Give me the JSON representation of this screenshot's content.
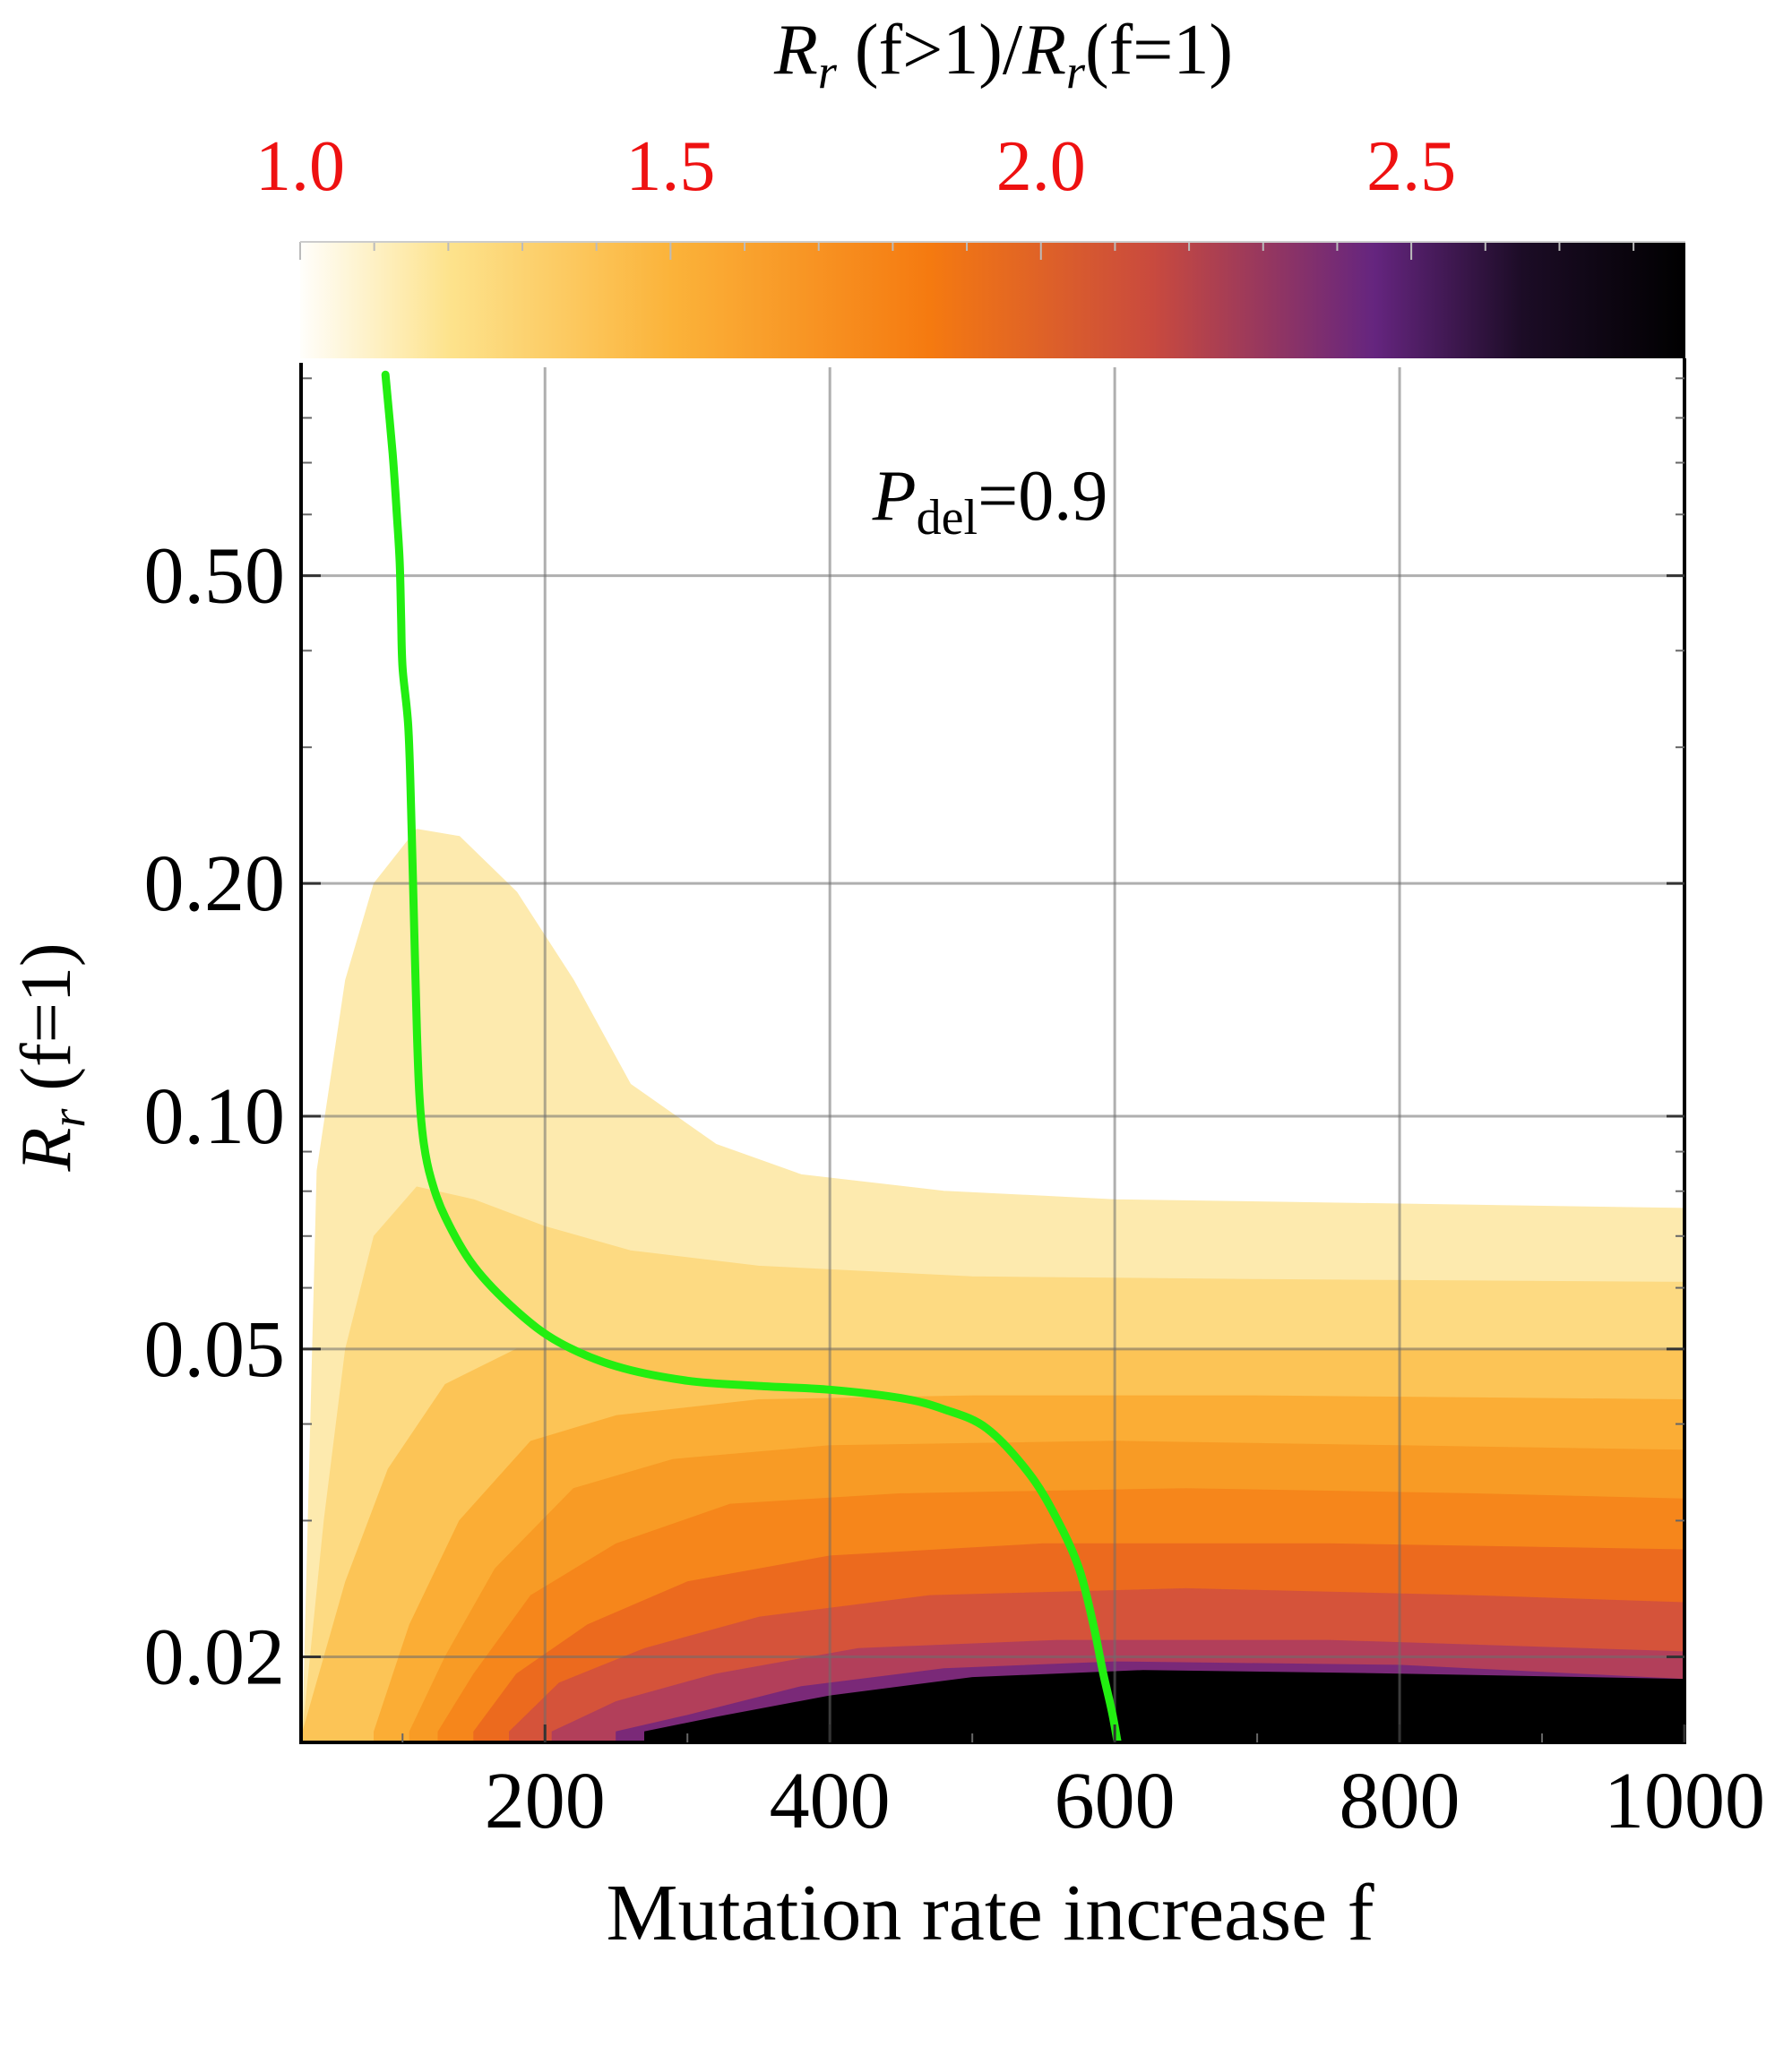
{
  "chart_data": {
    "type": "heatmap",
    "title": "",
    "annotation": {
      "symbol": "P",
      "subscript": "del",
      "rest": "=0.9"
    },
    "xlabel": "Mutation rate increase f",
    "ylabel": {
      "symbol": "R",
      "subscript": "r",
      "rest": " (f=1)"
    },
    "colorbar": {
      "label": {
        "sym1": "R",
        "sub1": "r",
        "mid": " (f>1)/",
        "sym2": "R",
        "sub2": "r",
        "end": "(f=1)"
      },
      "range": [
        1.0,
        2.87
      ],
      "ticks": [
        {
          "value": 1.0,
          "label": "1.0"
        },
        {
          "value": 1.5,
          "label": "1.5"
        },
        {
          "value": 2.0,
          "label": "2.0"
        },
        {
          "value": 2.5,
          "label": "2.5"
        }
      ],
      "tick_color": "#ee1111",
      "stops": [
        {
          "value": 1.0,
          "color": "#fffefb"
        },
        {
          "value": 1.2,
          "color": "#fde38d"
        },
        {
          "value": 1.5,
          "color": "#fbb33a"
        },
        {
          "value": 1.85,
          "color": "#f57a10"
        },
        {
          "value": 2.15,
          "color": "#c94a3e"
        },
        {
          "value": 2.45,
          "color": "#65257f"
        },
        {
          "value": 2.65,
          "color": "#1c0c26"
        },
        {
          "value": 2.87,
          "color": "#000000"
        }
      ]
    },
    "x_axis": {
      "range": [
        30,
        1000
      ],
      "ticks": [
        {
          "value": 200,
          "label": "200"
        },
        {
          "value": 400,
          "label": "400"
        },
        {
          "value": 600,
          "label": "600"
        },
        {
          "value": 800,
          "label": "800"
        },
        {
          "value": 1000,
          "label": "1000"
        }
      ],
      "grid": [
        200,
        400,
        600,
        800
      ]
    },
    "y_axis": {
      "scale": "log",
      "range": [
        0.0155,
        0.93
      ],
      "ticks": [
        {
          "value": 0.02,
          "label": "0.02"
        },
        {
          "value": 0.05,
          "label": "0.05"
        },
        {
          "value": 0.1,
          "label": "0.10"
        },
        {
          "value": 0.2,
          "label": "0.20"
        },
        {
          "value": 0.5,
          "label": "0.50"
        }
      ],
      "minor_ticks": [
        0.03,
        0.04,
        0.06,
        0.07,
        0.08,
        0.09,
        0.3,
        0.4,
        0.6,
        0.7,
        0.8,
        0.9
      ]
    },
    "contour_bands": [
      {
        "color": "#fdeaae",
        "upper_boundary": [
          [
            30,
            0.016
          ],
          [
            40,
            0.085
          ],
          [
            60,
            0.15
          ],
          [
            80,
            0.2
          ],
          [
            110,
            0.235
          ],
          [
            140,
            0.23
          ],
          [
            180,
            0.195
          ],
          [
            220,
            0.15
          ],
          [
            260,
            0.11
          ],
          [
            320,
            0.092
          ],
          [
            380,
            0.084
          ],
          [
            480,
            0.08
          ],
          [
            600,
            0.078
          ],
          [
            800,
            0.077
          ],
          [
            1000,
            0.076
          ]
        ]
      },
      {
        "color": "#fdda82",
        "upper_boundary": [
          [
            30,
            0.016
          ],
          [
            45,
            0.03
          ],
          [
            60,
            0.05
          ],
          [
            80,
            0.07
          ],
          [
            110,
            0.081
          ],
          [
            150,
            0.078
          ],
          [
            200,
            0.072
          ],
          [
            260,
            0.067
          ],
          [
            350,
            0.064
          ],
          [
            500,
            0.062
          ],
          [
            700,
            0.0615
          ],
          [
            1000,
            0.061
          ]
        ]
      },
      {
        "color": "#fcc456",
        "upper_boundary": [
          [
            30,
            0.016
          ],
          [
            60,
            0.025
          ],
          [
            90,
            0.035
          ],
          [
            130,
            0.045
          ],
          [
            180,
            0.05
          ],
          [
            250,
            0.05
          ],
          [
            350,
            0.05
          ],
          [
            500,
            0.05
          ],
          [
            700,
            0.05
          ],
          [
            1000,
            0.05
          ]
        ]
      },
      {
        "color": "#fbad35",
        "upper_boundary": [
          [
            80,
            0.016
          ],
          [
            105,
            0.022
          ],
          [
            140,
            0.03
          ],
          [
            190,
            0.038
          ],
          [
            250,
            0.041
          ],
          [
            350,
            0.043
          ],
          [
            500,
            0.0435
          ],
          [
            700,
            0.0435
          ],
          [
            1000,
            0.043
          ]
        ]
      },
      {
        "color": "#f89b25",
        "upper_boundary": [
          [
            105,
            0.016
          ],
          [
            130,
            0.02
          ],
          [
            165,
            0.026
          ],
          [
            220,
            0.033
          ],
          [
            290,
            0.036
          ],
          [
            400,
            0.0375
          ],
          [
            600,
            0.038
          ],
          [
            800,
            0.0375
          ],
          [
            1000,
            0.037
          ]
        ]
      },
      {
        "color": "#f6861b",
        "upper_boundary": [
          [
            125,
            0.016
          ],
          [
            150,
            0.019
          ],
          [
            190,
            0.024
          ],
          [
            250,
            0.028
          ],
          [
            330,
            0.0315
          ],
          [
            450,
            0.0325
          ],
          [
            650,
            0.033
          ],
          [
            850,
            0.0325
          ],
          [
            1000,
            0.032
          ]
        ]
      },
      {
        "color": "#ec6a1e",
        "upper_boundary": [
          [
            150,
            0.016
          ],
          [
            180,
            0.019
          ],
          [
            230,
            0.022
          ],
          [
            300,
            0.025
          ],
          [
            400,
            0.027
          ],
          [
            550,
            0.028
          ],
          [
            750,
            0.028
          ],
          [
            1000,
            0.0275
          ]
        ]
      },
      {
        "color": "#d5533a",
        "upper_boundary": [
          [
            175,
            0.016
          ],
          [
            210,
            0.0185
          ],
          [
            270,
            0.0205
          ],
          [
            350,
            0.0225
          ],
          [
            470,
            0.024
          ],
          [
            650,
            0.0245
          ],
          [
            850,
            0.024
          ],
          [
            1000,
            0.0235
          ]
        ]
      },
      {
        "color": "#b23f5a",
        "upper_boundary": [
          [
            205,
            0.016
          ],
          [
            250,
            0.0175
          ],
          [
            320,
            0.019
          ],
          [
            420,
            0.0205
          ],
          [
            560,
            0.021
          ],
          [
            750,
            0.021
          ],
          [
            1000,
            0.0203
          ]
        ]
      },
      {
        "color": "#7a2978",
        "upper_boundary": [
          [
            250,
            0.016
          ],
          [
            300,
            0.0168
          ],
          [
            380,
            0.0183
          ],
          [
            480,
            0.0193
          ],
          [
            600,
            0.0197
          ],
          [
            800,
            0.0195
          ],
          [
            1000,
            0.0187
          ]
        ]
      },
      {
        "color": "#000000",
        "upper_boundary": [
          [
            270,
            0.016
          ],
          [
            320,
            0.0167
          ],
          [
            400,
            0.0178
          ],
          [
            500,
            0.0188
          ],
          [
            620,
            0.0192
          ],
          [
            800,
            0.019
          ],
          [
            1000,
            0.0187
          ]
        ]
      }
    ],
    "series": [
      {
        "color": "#22ee11",
        "x": [
          88,
          93,
          96,
          98,
          99,
          100,
          104,
          106,
          108,
          110,
          112,
          115,
          120,
          130,
          150,
          180,
          210,
          250,
          300,
          350,
          400,
          450,
          480,
          510,
          540,
          560,
          575,
          585,
          592,
          598,
          602
        ],
        "y": [
          0.91,
          0.72,
          0.6,
          0.52,
          0.44,
          0.38,
          0.32,
          0.25,
          0.18,
          0.13,
          0.105,
          0.092,
          0.083,
          0.074,
          0.064,
          0.056,
          0.051,
          0.0475,
          0.0455,
          0.0448,
          0.0443,
          0.0432,
          0.0418,
          0.0395,
          0.0345,
          0.03,
          0.026,
          0.022,
          0.019,
          0.017,
          0.0155
        ]
      }
    ]
  }
}
